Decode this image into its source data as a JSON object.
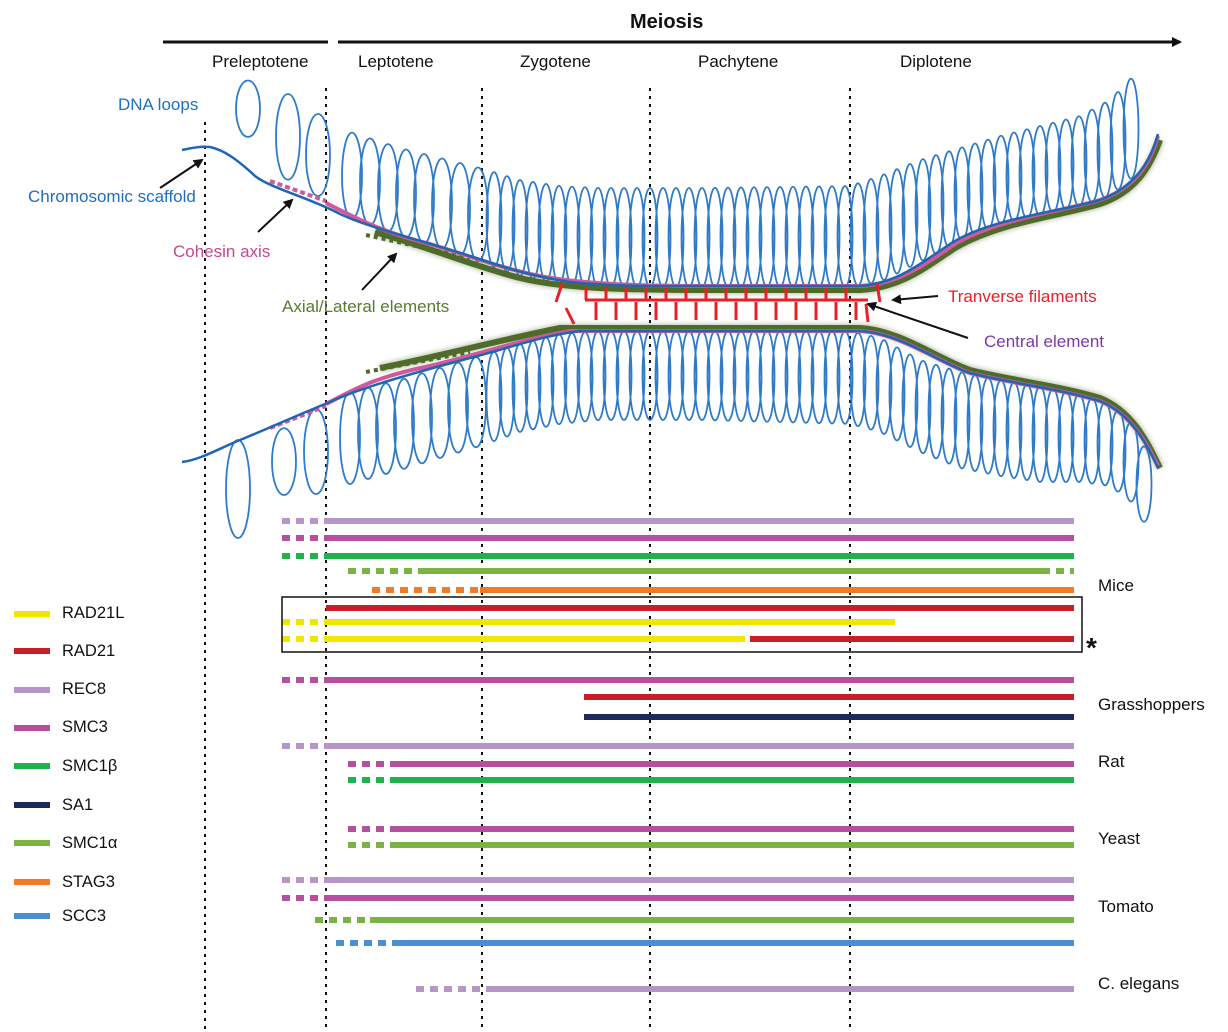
{
  "title": "Meiosis",
  "stages": [
    "Preleptotene",
    "Leptotene",
    "Zygotene",
    "Pachytene",
    "Diplotene"
  ],
  "annotations": {
    "dna_loops": "DNA loops",
    "scaffold": "Chromosomic scaffold",
    "cohesin": "Cohesin axis",
    "axial": "Axial/Lateral elements",
    "transverse": "Tranverse filaments",
    "central": "Central element"
  },
  "annotation_colors": {
    "dna_loops": "#1f6fbf",
    "scaffold": "#1f6fbf",
    "cohesin": "#c8468f",
    "axial": "#5a7a2e",
    "transverse": "#e8202a",
    "central": "#7a3aa8"
  },
  "legend": [
    {
      "label": "RAD21L",
      "color": "#f2e600"
    },
    {
      "label": "RAD21",
      "color": "#c81e28"
    },
    {
      "label": "REC8",
      "color": "#b895c8"
    },
    {
      "label": "SMC3",
      "color": "#b84e9e"
    },
    {
      "label": "SMC1β",
      "color": "#1db34a"
    },
    {
      "label": "SA1",
      "color": "#1c2a5e"
    },
    {
      "label": "SMC1α",
      "color": "#7ab342"
    },
    {
      "label": "STAG3",
      "color": "#ef7b22"
    },
    {
      "label": "SCC3",
      "color": "#4a8fd4"
    }
  ],
  "species": [
    "Mice",
    "Grasshoppers",
    "Rat",
    "Yeast",
    "Tomato",
    "C. elegans"
  ],
  "asterisk": "*",
  "colors": {
    "loop": "#2f7bc9",
    "scaffold": "#1e66b3",
    "cohesin": "#d0589c",
    "axial": "#4f6b2a",
    "transverse": "#e8202a"
  }
}
